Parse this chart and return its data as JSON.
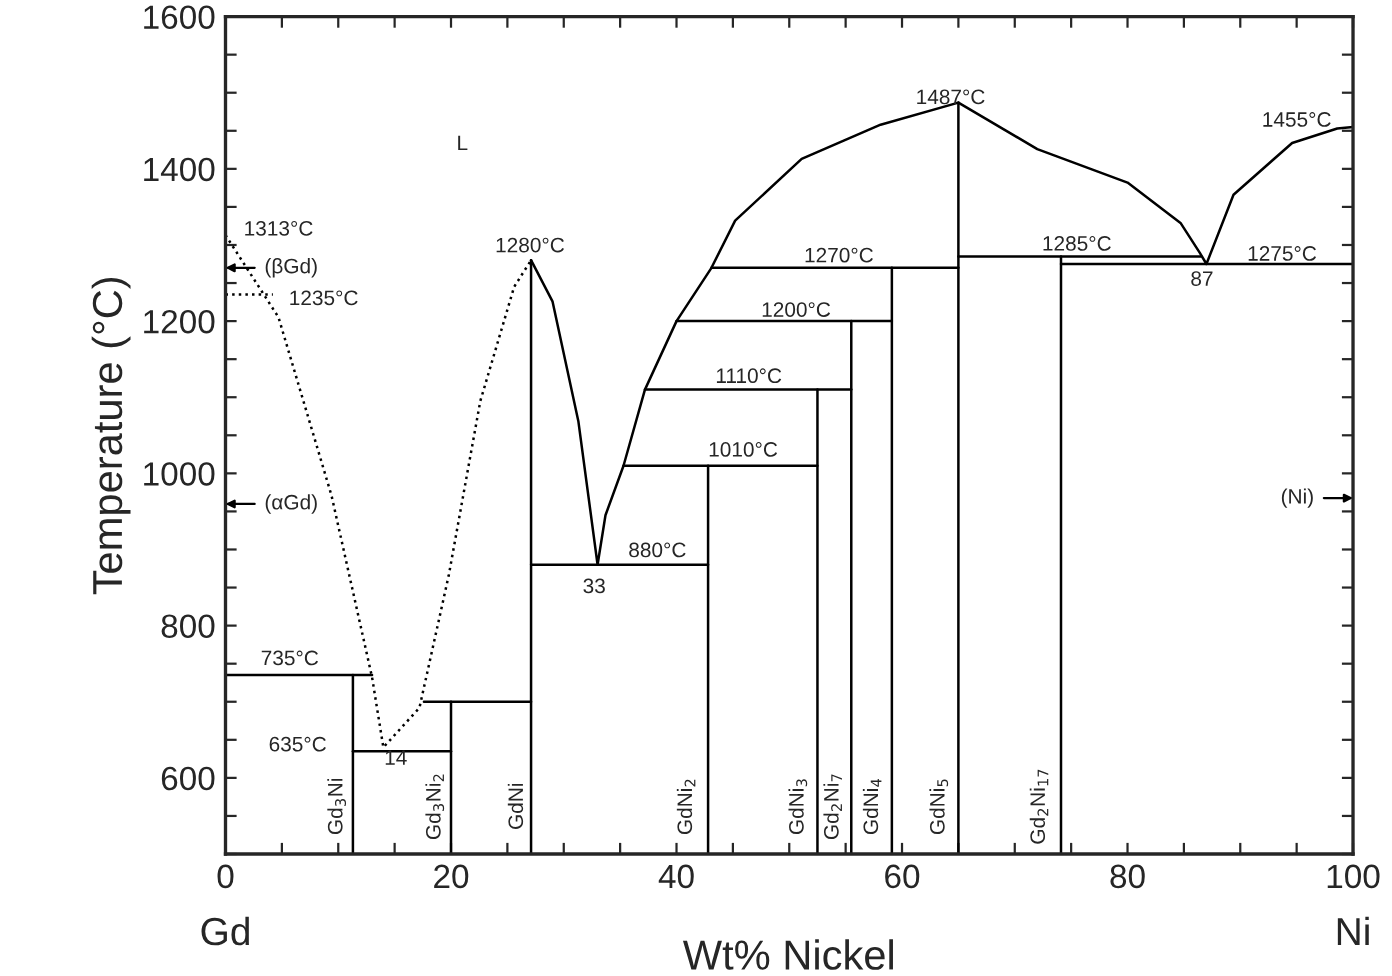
{
  "chart_data": {
    "type": "line",
    "xlabel": "Wt% Nickel",
    "ylabel": "Temperature (°C)",
    "xlim": [
      0,
      100
    ],
    "ylim": [
      500,
      1600
    ],
    "xticks": [
      0,
      {
        "value": 5,
        "label": null
      },
      {
        "value": 10,
        "label": null
      },
      {
        "value": 15,
        "label": null
      },
      20,
      {
        "value": 25,
        "label": null
      },
      {
        "value": 30,
        "label": null
      },
      {
        "value": 35,
        "label": null
      },
      40,
      {
        "value": 45,
        "label": null
      },
      {
        "value": 50,
        "label": null
      },
      {
        "value": 55,
        "label": null
      },
      60,
      {
        "value": 65,
        "label": null
      },
      {
        "value": 70,
        "label": null
      },
      {
        "value": 75,
        "label": null
      },
      80,
      {
        "value": 85,
        "label": null
      },
      {
        "value": 90,
        "label": null
      },
      {
        "value": 95,
        "label": null
      },
      100
    ],
    "yticks": [
      {
        "value": 500,
        "label": null
      },
      {
        "value": 550,
        "label": null
      },
      600,
      {
        "value": 650,
        "label": null
      },
      {
        "value": 700,
        "label": null
      },
      {
        "value": 750,
        "label": null
      },
      800,
      {
        "value": 850,
        "label": null
      },
      {
        "value": 900,
        "label": null
      },
      {
        "value": 950,
        "label": null
      },
      1000,
      {
        "value": 1050,
        "label": null
      },
      {
        "value": 1100,
        "label": null
      },
      {
        "value": 1150,
        "label": null
      },
      1200,
      {
        "value": 1250,
        "label": null
      },
      {
        "value": 1300,
        "label": null
      },
      {
        "value": 1350,
        "label": null
      },
      1400,
      {
        "value": 1450,
        "label": null
      },
      {
        "value": 1500,
        "label": null
      },
      {
        "value": 1550,
        "label": null
      },
      1600
    ],
    "grid": false,
    "legend": false,
    "marker": "none",
    "series": [
      {
        "color": "#000000",
        "line_style": "dotted",
        "x": [
          0,
          4.7,
          9.4,
          13,
          14,
          17.2,
          19.8,
          22.6,
          25.6,
          27.1
        ],
        "values": [
          1313,
          1205,
          971,
          732,
          640,
          692,
          866,
          1095,
          1245,
          1280
        ]
      },
      {
        "color": "#000000",
        "line_style": "dotted",
        "x": [
          0,
          4.2
        ],
        "values": [
          1235,
          1235
        ]
      },
      {
        "color": "#000000",
        "line_style": "solid",
        "x": [
          27.1,
          29,
          31.3,
          33,
          33.7,
          35.3,
          37.2,
          40,
          43.1,
          45.2,
          51.1,
          58.1,
          65,
          72,
          80,
          84.7,
          86.4,
          87,
          89.4,
          94.6,
          98.6,
          100
        ],
        "values": [
          1280,
          1226,
          1068,
          880,
          945,
          1010,
          1110,
          1200,
          1270,
          1332,
          1413,
          1458,
          1487,
          1426,
          1382,
          1329,
          1290,
          1275,
          1366,
          1434,
          1453,
          1455
        ]
      },
      {
        "color": "#000000",
        "line_style": "solid",
        "x": [
          0,
          13
        ],
        "values": [
          735,
          735
        ]
      },
      {
        "color": "#000000",
        "line_style": "solid",
        "x": [
          11.3,
          20
        ],
        "values": [
          635,
          635
        ]
      },
      {
        "color": "#000000",
        "line_style": "solid",
        "x": [
          17.6,
          27.1
        ],
        "values": [
          700,
          700
        ]
      },
      {
        "color": "#000000",
        "line_style": "solid",
        "x": [
          27.1,
          42.8
        ],
        "values": [
          880,
          880
        ]
      },
      {
        "color": "#000000",
        "line_style": "solid",
        "x": [
          35.3,
          52.5
        ],
        "values": [
          1010,
          1010
        ]
      },
      {
        "color": "#000000",
        "line_style": "solid",
        "x": [
          37.2,
          55.5
        ],
        "values": [
          1110,
          1110
        ]
      },
      {
        "color": "#000000",
        "line_style": "solid",
        "x": [
          40,
          59.1
        ],
        "values": [
          1200,
          1200
        ]
      },
      {
        "color": "#000000",
        "line_style": "solid",
        "x": [
          43.1,
          65
        ],
        "values": [
          1270,
          1270
        ]
      },
      {
        "color": "#000000",
        "line_style": "solid",
        "x": [
          65,
          86.5
        ],
        "values": [
          1285,
          1285
        ]
      },
      {
        "color": "#000000",
        "line_style": "solid",
        "x": [
          74.1,
          100
        ],
        "values": [
          1275,
          1275
        ]
      },
      {
        "color": "#000000",
        "line_style": "solid",
        "x": [
          11.3,
          11.3
        ],
        "values": [
          500,
          735
        ]
      },
      {
        "color": "#000000",
        "line_style": "solid",
        "x": [
          20,
          20
        ],
        "values": [
          500,
          700
        ]
      },
      {
        "color": "#000000",
        "line_style": "solid",
        "x": [
          27.1,
          27.1
        ],
        "values": [
          500,
          1280
        ]
      },
      {
        "color": "#000000",
        "line_style": "solid",
        "x": [
          42.8,
          42.8
        ],
        "values": [
          500,
          1010
        ]
      },
      {
        "color": "#000000",
        "line_style": "solid",
        "x": [
          52.5,
          52.5
        ],
        "values": [
          500,
          1110
        ]
      },
      {
        "color": "#000000",
        "line_style": "solid",
        "x": [
          55.5,
          55.5
        ],
        "values": [
          500,
          1200
        ]
      },
      {
        "color": "#000000",
        "line_style": "solid",
        "x": [
          59.1,
          59.1
        ],
        "values": [
          500,
          1270
        ]
      },
      {
        "color": "#000000",
        "line_style": "solid",
        "x": [
          65,
          65
        ],
        "values": [
          500,
          1487
        ]
      },
      {
        "color": "#000000",
        "line_style": "solid",
        "x": [
          74.1,
          74.1
        ],
        "values": [
          500,
          1285
        ]
      }
    ],
    "annotations": [
      "1313°C",
      "(βGd)",
      "1235°C",
      "(αGd)",
      "(Ni)",
      "L",
      "1280°C",
      "735°C",
      "635°C",
      "14",
      "33",
      "880°C",
      "1010°C",
      "1110°C",
      "1200°C",
      "1270°C",
      "1487°C",
      "1285°C",
      "87",
      "1275°C",
      "1455°C",
      "Gd$_{3}$Ni",
      "Gd$_{3}$Ni$_{2}$",
      "GdNi",
      "GdNi$_{2}$",
      "GdNi$_{3}$",
      "Gd$_{2}$Ni$_{7}$",
      "GdNi$_{4}$",
      "GdNi$_{5}$",
      "Gd$_{2}$Ni$_{17}$",
      "Gd",
      "Ni"
    ]
  }
}
